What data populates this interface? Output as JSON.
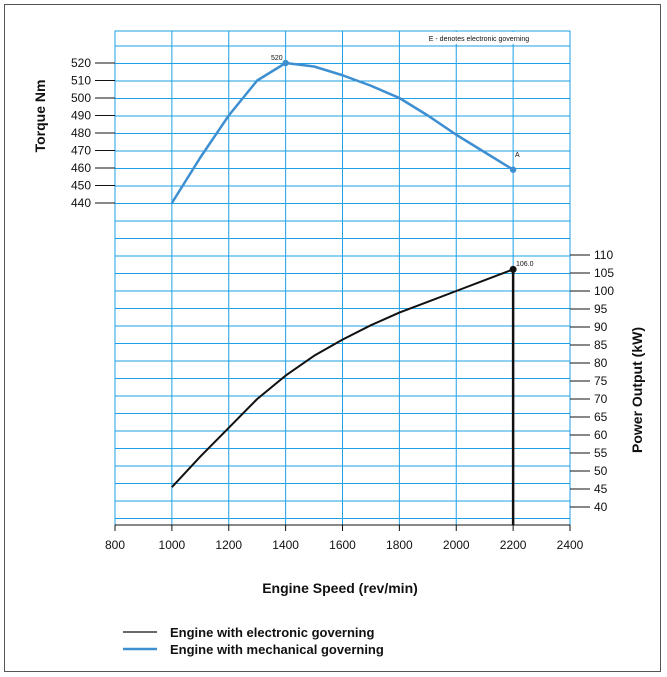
{
  "colors": {
    "grid": "#1ea0e6",
    "mechanical": "#3d8fd1",
    "electronic": "#111111"
  },
  "chart_data": {
    "type": "line",
    "xlabel": "Engine Speed (rev/min)",
    "x_ticks": [
      800,
      1000,
      1200,
      1400,
      1600,
      1800,
      2000,
      2200,
      2400
    ],
    "xlim": [
      800,
      2400
    ],
    "torque_axis": {
      "label": "Torque Nm",
      "ticks": [
        440,
        450,
        460,
        470,
        480,
        490,
        500,
        510,
        520
      ]
    },
    "power_axis": {
      "label": "Power Output (kW)",
      "ticks": [
        40,
        45,
        50,
        55,
        60,
        65,
        70,
        75,
        80,
        85,
        90,
        95,
        100,
        105,
        110
      ]
    },
    "note": "E - denotes electronic governing",
    "series": [
      {
        "name": "Engine with mechanical governing",
        "axis": "torque",
        "x": [
          1000,
          1100,
          1200,
          1300,
          1400,
          1500,
          1600,
          1700,
          1800,
          1900,
          2000,
          2100,
          2200
        ],
        "y": [
          440,
          466,
          490,
          510,
          520,
          518,
          513,
          507,
          500,
          490,
          479,
          469,
          459
        ]
      },
      {
        "name": "Engine with electronic governing",
        "axis": "power",
        "x": [
          1000,
          1100,
          1200,
          1300,
          1400,
          1500,
          1600,
          1700,
          1800,
          1900,
          2000,
          2100,
          2200
        ],
        "y": [
          45.5,
          54,
          62,
          70,
          76.5,
          82,
          86.5,
          90.5,
          94,
          97,
          100,
          103,
          106
        ]
      }
    ],
    "annotations": {
      "peak_torque": "520",
      "point_a": "A",
      "peak_power": "106.0"
    },
    "grid": true
  }
}
